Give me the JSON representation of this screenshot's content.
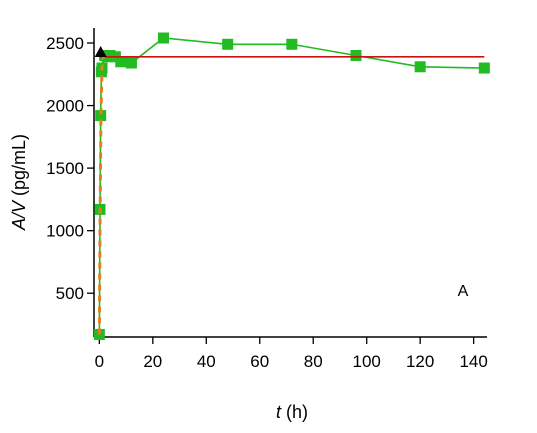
{
  "chart_data": {
    "type": "line",
    "title": "",
    "xlabel_var": "t",
    "xlabel_unit": " (h)",
    "ylabel_var": "A/V",
    "ylabel_unit": " (pg/mL)",
    "panel_label": "A",
    "xlim": [
      -2,
      145
    ],
    "ylim": [
      150,
      2620
    ],
    "x_ticks": [
      0,
      20,
      40,
      60,
      80,
      100,
      120,
      140
    ],
    "y_ticks": [
      500,
      1000,
      1500,
      2000,
      2500
    ],
    "grid": false,
    "legend": "none",
    "series": [
      {
        "color": "#22bb22",
        "marker": "square",
        "line": "solid",
        "x": [
          0,
          0.25,
          0.5,
          0.75,
          1,
          2,
          3,
          4,
          6,
          8,
          12,
          24,
          48,
          72,
          96,
          120,
          144
        ],
        "y": [
          170,
          1170,
          1920,
          2270,
          2300,
          2400,
          2390,
          2400,
          2390,
          2350,
          2340,
          2540,
          2490,
          2490,
          2400,
          2310,
          2300
        ]
      },
      {
        "color": "#cc1111",
        "marker": "none",
        "line": "solid",
        "x": [
          0,
          144
        ],
        "y": [
          2390,
          2390
        ]
      },
      {
        "color": "#e08020",
        "marker": "none",
        "line": "dashed",
        "x": [
          0,
          0.3,
          0.6,
          1,
          1.5
        ],
        "y": [
          170,
          1170,
          1920,
          2300,
          2390
        ]
      },
      {
        "color": "#000000",
        "marker": "triangle",
        "line": "none",
        "x": [
          0.5
        ],
        "y": [
          2420
        ]
      }
    ]
  }
}
